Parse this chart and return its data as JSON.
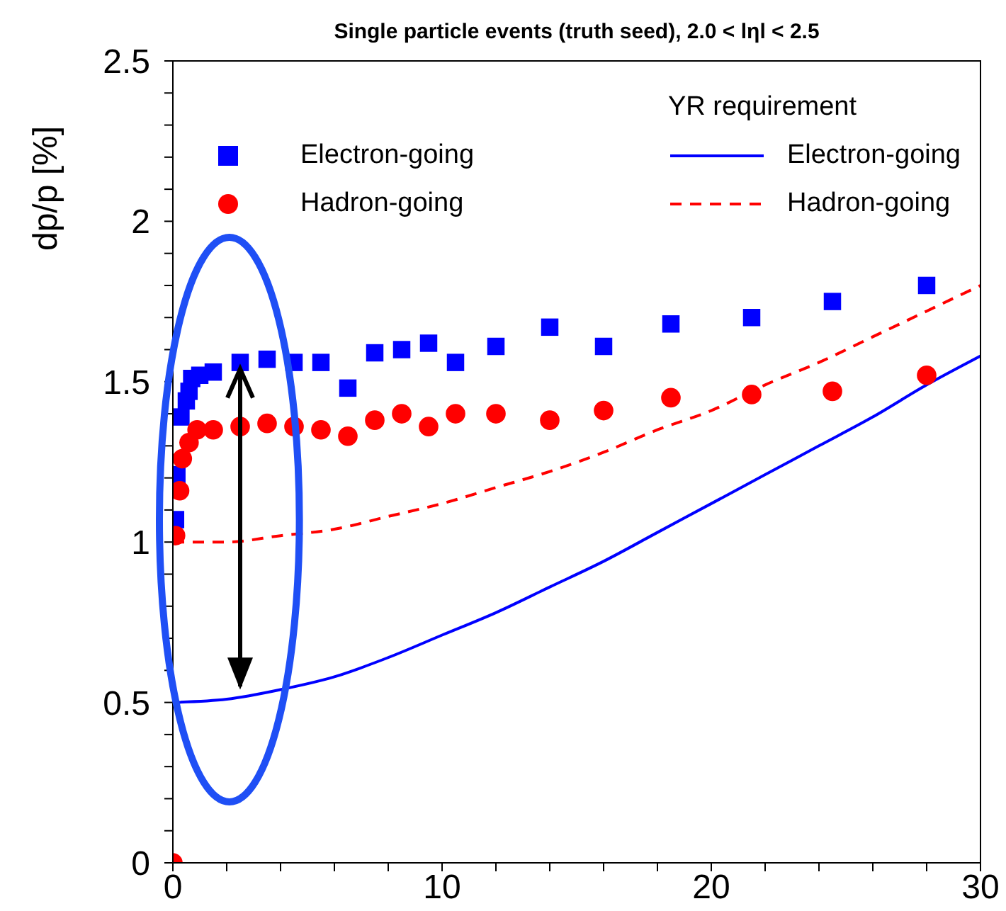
{
  "chart_data": {
    "type": "scatter",
    "title": "Single particle events (truth seed),  2.0 < lηl < 2.5",
    "ylabel": "dp/p [%]",
    "xlim": [
      0,
      30
    ],
    "xticks": [
      0,
      {
        "value": 2,
        "label": null
      },
      {
        "value": 4,
        "label": null
      },
      {
        "value": 6,
        "label": null
      },
      {
        "value": 8,
        "label": null
      },
      10,
      {
        "value": 12,
        "label": null
      },
      {
        "value": 14,
        "label": null
      },
      {
        "value": 16,
        "label": null
      },
      {
        "value": 18,
        "label": null
      },
      20,
      {
        "value": 22,
        "label": null
      },
      {
        "value": 24,
        "label": null
      },
      {
        "value": 26,
        "label": null
      },
      {
        "value": 28,
        "label": null
      },
      30
    ],
    "ylim": [
      0,
      2.5
    ],
    "yticks": [
      0,
      {
        "value": 0.1,
        "label": null
      },
      {
        "value": 0.2,
        "label": null
      },
      {
        "value": 0.3,
        "label": null
      },
      {
        "value": 0.4,
        "label": null
      },
      0.5,
      {
        "value": 0.6,
        "label": null
      },
      {
        "value": 0.7,
        "label": null
      },
      {
        "value": 0.8,
        "label": null
      },
      {
        "value": 0.9,
        "label": null
      },
      1,
      {
        "value": 1.1,
        "label": null
      },
      {
        "value": 1.2,
        "label": null
      },
      {
        "value": 1.3,
        "label": null
      },
      {
        "value": 1.4,
        "label": null
      },
      1.5,
      {
        "value": 1.6,
        "label": null
      },
      {
        "value": 1.7,
        "label": null
      },
      {
        "value": 1.8,
        "label": null
      },
      {
        "value": 1.9,
        "label": null
      },
      2,
      {
        "value": 2.1,
        "label": null
      },
      {
        "value": 2.2,
        "label": null
      },
      {
        "value": 2.3,
        "label": null
      },
      {
        "value": 2.4,
        "label": null
      },
      2.5
    ],
    "grid": false,
    "legend": "top",
    "annotations": [
      "YR requirement"
    ],
    "series": [
      {
        "name": "Electron-going",
        "marker": "square",
        "color": "#0000ff",
        "x": [
          0.1,
          0.15,
          0.3,
          0.5,
          0.6,
          0.7,
          1.0,
          1.5,
          2.5,
          3.5,
          4.5,
          5.5,
          6.5,
          7.5,
          8.5,
          9.5,
          10.5,
          12,
          14,
          16,
          18.5,
          21.5,
          24.5,
          28
        ],
        "values": [
          1.07,
          1.21,
          1.39,
          1.44,
          1.47,
          1.51,
          1.52,
          1.53,
          1.56,
          1.57,
          1.56,
          1.56,
          1.48,
          1.59,
          1.6,
          1.62,
          1.56,
          1.61,
          1.67,
          1.61,
          1.68,
          1.7,
          1.75,
          1.8
        ]
      },
      {
        "name": "Hadron-going",
        "marker": "circle",
        "color": "#ff0000",
        "x": [
          0,
          0.1,
          0.25,
          0.35,
          0.6,
          0.9,
          1.5,
          2.5,
          3.5,
          4.5,
          5.5,
          6.5,
          7.5,
          8.5,
          9.5,
          10.5,
          12,
          14,
          16,
          18.5,
          21.5,
          24.5,
          28
        ],
        "values": [
          0,
          1.02,
          1.16,
          1.26,
          1.31,
          1.35,
          1.35,
          1.36,
          1.37,
          1.36,
          1.35,
          1.33,
          1.38,
          1.4,
          1.36,
          1.4,
          1.4,
          1.38,
          1.41,
          1.45,
          1.46,
          1.47,
          1.52
        ]
      },
      {
        "name": "Electron-going",
        "type": "line",
        "marker": "none",
        "line_style": "solid",
        "color": "#0000ff",
        "x": [
          0,
          2,
          4,
          6,
          8,
          10,
          12,
          14,
          16,
          18,
          20,
          22,
          24,
          26,
          28,
          30
        ],
        "values": [
          0.5,
          0.51,
          0.54,
          0.58,
          0.64,
          0.71,
          0.78,
          0.86,
          0.94,
          1.03,
          1.12,
          1.21,
          1.3,
          1.39,
          1.49,
          1.58
        ]
      },
      {
        "name": "Hadron-going",
        "type": "line",
        "marker": "none",
        "line_style": "dashed",
        "color": "#ff0000",
        "x": [
          0,
          2,
          4,
          6,
          8,
          10,
          12,
          14,
          16,
          18,
          20,
          22,
          24,
          26,
          28,
          30
        ],
        "values": [
          1,
          1.0,
          1.02,
          1.04,
          1.08,
          1.12,
          1.17,
          1.22,
          1.28,
          1.35,
          1.41,
          1.49,
          1.56,
          1.64,
          1.72,
          1.8
        ]
      }
    ]
  }
}
